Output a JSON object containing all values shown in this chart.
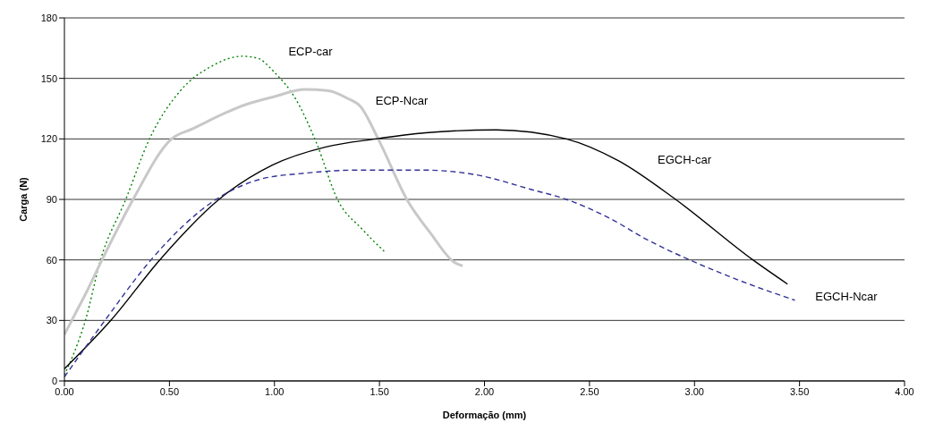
{
  "chart_data": {
    "type": "line",
    "xlabel": "Deformação (mm)",
    "ylabel": "Carga (N)",
    "xlim": [
      0,
      4
    ],
    "xticks": [
      {
        "value": 0,
        "label": "0.00"
      },
      {
        "value": 0.5,
        "label": "0.50"
      },
      {
        "value": 1,
        "label": "1.00"
      },
      {
        "value": 1.5,
        "label": "1.50"
      },
      {
        "value": 2,
        "label": "2.00"
      },
      {
        "value": 2.5,
        "label": "2.50"
      },
      {
        "value": 3,
        "label": "3.00"
      },
      {
        "value": 3.5,
        "label": "3.50"
      },
      {
        "value": 4,
        "label": "4.00"
      }
    ],
    "ylim": [
      0,
      180
    ],
    "yticks": [
      0,
      30,
      60,
      90,
      120,
      150,
      180
    ],
    "grid": "y",
    "legend": false,
    "marker": "none",
    "series": [
      {
        "color": "#008000",
        "line_style": "dotted",
        "x": [
          0,
          0.05,
          0.1,
          0.172,
          0.292,
          0.405,
          0.553,
          0.7,
          0.847,
          0.92,
          1.0,
          1.1,
          1.2,
          1.3,
          1.42,
          1.525
        ],
        "values": [
          3,
          15,
          30,
          60,
          90,
          120,
          144,
          156,
          161,
          160,
          153,
          140,
          118,
          90,
          75,
          64
        ]
      },
      {
        "color": "#c8c8c8",
        "line_style": "solid",
        "x": [
          0,
          0.05,
          0.1,
          0.179,
          0.327,
          0.51,
          0.609,
          0.863,
          1.0,
          1.145,
          1.25,
          1.35,
          1.41,
          1.494,
          1.636,
          1.745,
          1.854,
          1.896
        ],
        "values": [
          23,
          33,
          43,
          60,
          90,
          120,
          125,
          137,
          141,
          144.5,
          144,
          140,
          136,
          120,
          89,
          73,
          59,
          57
        ]
      },
      {
        "color": "#000000",
        "line_style": "solid",
        "x": [
          0,
          0.221,
          0.454,
          0.736,
          0.99,
          1.244,
          1.483,
          1.72,
          2.055,
          2.39,
          2.641,
          2.91,
          3.278,
          3.443
        ],
        "values": [
          6,
          30,
          60,
          90,
          107,
          116,
          120,
          123,
          124.5,
          120,
          109,
          90,
          60,
          48
        ]
      },
      {
        "color": "#333399",
        "line_style": "dashed",
        "x": [
          0,
          0.193,
          0.412,
          0.722,
          0.933,
          1.145,
          1.385,
          1.72,
          1.97,
          2.22,
          2.39,
          2.59,
          2.775,
          2.977,
          3.26,
          3.478
        ],
        "values": [
          2,
          30,
          60,
          90,
          100,
          103,
          104.5,
          104.5,
          102,
          95,
          90,
          81,
          70,
          60,
          48,
          40
        ]
      }
    ],
    "annotations": [
      "ECP-car",
      "ECP-Ncar",
      "EGCH-car",
      "EGCH-Ncar"
    ]
  }
}
